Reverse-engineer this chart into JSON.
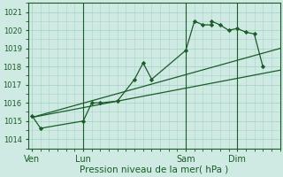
{
  "background_color": "#ceeae2",
  "grid_color": "#a8d5c8",
  "line_color": "#1a5c28",
  "marker_color": "#1a5c28",
  "xlabel": "Pression niveau de la mer( hPa )",
  "ylim": [
    1013.5,
    1021.5
  ],
  "yticks": [
    1014,
    1015,
    1016,
    1017,
    1018,
    1019,
    1020,
    1021
  ],
  "x_tick_labels": [
    "Ven",
    "Lun",
    "Sam",
    "Dim"
  ],
  "x_tick_positions": [
    0,
    3,
    9,
    12
  ],
  "xlim": [
    -0.2,
    14.5
  ],
  "series1_x": [
    0,
    0.5,
    3,
    3.5,
    4,
    5,
    6,
    6.5,
    7,
    9,
    9.5,
    10,
    10.5,
    10.5,
    11,
    11.5,
    12,
    12.5,
    13,
    13.5
  ],
  "series1_y": [
    1015.3,
    1014.6,
    1015.0,
    1016.0,
    1016.0,
    1016.1,
    1017.3,
    1018.2,
    1017.3,
    1018.9,
    1020.5,
    1020.3,
    1020.3,
    1020.5,
    1020.3,
    1020.0,
    1020.1,
    1019.9,
    1019.8,
    1018.0
  ],
  "trend1_x": [
    0,
    14.5
  ],
  "trend1_y": [
    1015.2,
    1017.8
  ],
  "trend2_x": [
    0,
    14.5
  ],
  "trend2_y": [
    1015.2,
    1019.0
  ],
  "vlines_x": [
    3,
    9,
    12
  ],
  "vline_color": "#1a5c28",
  "ytick_fontsize": 6,
  "xtick_fontsize": 7,
  "xlabel_fontsize": 7.5
}
